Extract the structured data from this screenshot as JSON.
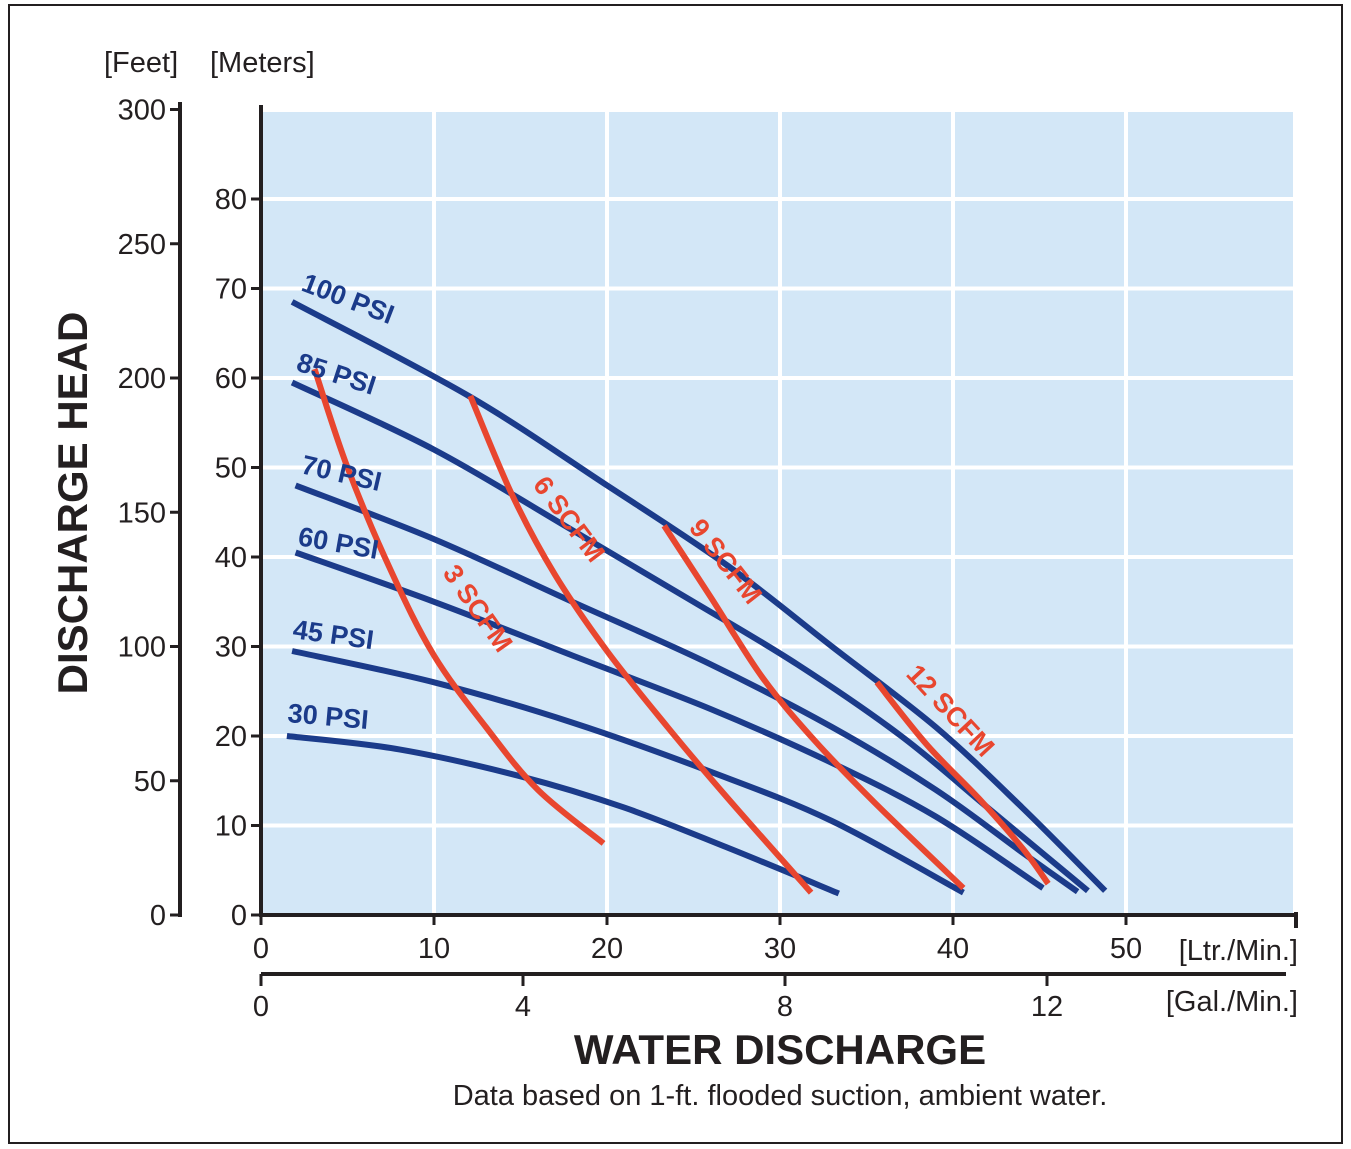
{
  "chart_data": {
    "type": "line",
    "title": "",
    "xlabel": "WATER DISCHARGE",
    "ylabel": "DISCHARGE HEAD",
    "note": "Data based on 1-ft. flooded suction, ambient water.",
    "grid": true,
    "colors": {
      "background": "#d3e7f7",
      "grid": "#ffffff",
      "psi": "#1b3b8a",
      "scfm": "#e8462f",
      "axis": "#231f20"
    },
    "x_axis_primary": {
      "unit": "[Ltr./Min.]",
      "range": [
        0,
        60
      ],
      "ticks": [
        0,
        10,
        20,
        30,
        40,
        50
      ],
      "tick_labels": [
        "0",
        "10",
        "20",
        "30",
        "40",
        "50"
      ]
    },
    "x_axis_secondary": {
      "unit": "[Gal./Min.]",
      "ticks": [
        0,
        4,
        8,
        12
      ],
      "tick_labels": [
        "0",
        "4",
        "8",
        "12"
      ]
    },
    "y_axis_meters": {
      "unit": "[Meters]",
      "range": [
        0,
        90
      ],
      "ticks": [
        0,
        10,
        20,
        30,
        40,
        50,
        60,
        70,
        80
      ],
      "tick_labels": [
        "0",
        "10",
        "20",
        "30",
        "40",
        "50",
        "60",
        "70",
        "80"
      ]
    },
    "y_axis_feet": {
      "unit": "[Feet]",
      "ticks": [
        0,
        50,
        100,
        150,
        200,
        250,
        300
      ],
      "tick_labels": [
        "0",
        "50",
        "100",
        "150",
        "200",
        "250",
        "300"
      ]
    },
    "psi_series": [
      {
        "name": "100 PSI",
        "points": [
          [
            1.8,
            68.5
          ],
          [
            12,
            58
          ],
          [
            20,
            48
          ],
          [
            27,
            39
          ],
          [
            33,
            30
          ],
          [
            39,
            21
          ],
          [
            44,
            12
          ],
          [
            48.8,
            2.7
          ]
        ]
      },
      {
        "name": "85 PSI",
        "points": [
          [
            1.8,
            59.5
          ],
          [
            10,
            52
          ],
          [
            18,
            43
          ],
          [
            25,
            35
          ],
          [
            31,
            28
          ],
          [
            37,
            20
          ],
          [
            42,
            12
          ],
          [
            47.8,
            2.7
          ]
        ]
      },
      {
        "name": "70 PSI",
        "points": [
          [
            2,
            48
          ],
          [
            10,
            42
          ],
          [
            18,
            35
          ],
          [
            26,
            28
          ],
          [
            33,
            21
          ],
          [
            39,
            14
          ],
          [
            44,
            7
          ],
          [
            47.2,
            2.6
          ]
        ]
      },
      {
        "name": "60 PSI",
        "points": [
          [
            2,
            40.5
          ],
          [
            10,
            35
          ],
          [
            18,
            29
          ],
          [
            26,
            23
          ],
          [
            33,
            17
          ],
          [
            39,
            11
          ],
          [
            45.2,
            3
          ]
        ]
      },
      {
        "name": "45 PSI",
        "points": [
          [
            1.8,
            29.5
          ],
          [
            10,
            26
          ],
          [
            18,
            21.5
          ],
          [
            26,
            16
          ],
          [
            33,
            10.5
          ],
          [
            40.6,
            2.5
          ]
        ]
      },
      {
        "name": "30 PSI",
        "points": [
          [
            1.5,
            20
          ],
          [
            8,
            18.5
          ],
          [
            15,
            15.5
          ],
          [
            21,
            12
          ],
          [
            27,
            7.5
          ],
          [
            33.4,
            2.4
          ]
        ]
      }
    ],
    "scfm_series": [
      {
        "name": "3 SCFM",
        "points": [
          [
            3.1,
            61
          ],
          [
            5,
            50
          ],
          [
            7.5,
            38.5
          ],
          [
            10,
            29
          ],
          [
            13,
            21
          ],
          [
            16,
            14
          ],
          [
            19.8,
            8
          ]
        ]
      },
      {
        "name": "6 SCFM",
        "points": [
          [
            12.1,
            58
          ],
          [
            14.5,
            47
          ],
          [
            17,
            38
          ],
          [
            20,
            29.5
          ],
          [
            23.5,
            21
          ],
          [
            27,
            13
          ],
          [
            31.8,
            2.5
          ]
        ]
      },
      {
        "name": "9 SCFM",
        "points": [
          [
            23.3,
            43.5
          ],
          [
            26,
            35.5
          ],
          [
            29,
            26.5
          ],
          [
            32,
            19.5
          ],
          [
            35.5,
            12.5
          ],
          [
            40.6,
            3
          ]
        ]
      },
      {
        "name": "12 SCFM",
        "points": [
          [
            35.6,
            26
          ],
          [
            38.5,
            19
          ],
          [
            41.5,
            13
          ],
          [
            44,
            7.5
          ],
          [
            45.5,
            3.5
          ]
        ]
      }
    ]
  }
}
